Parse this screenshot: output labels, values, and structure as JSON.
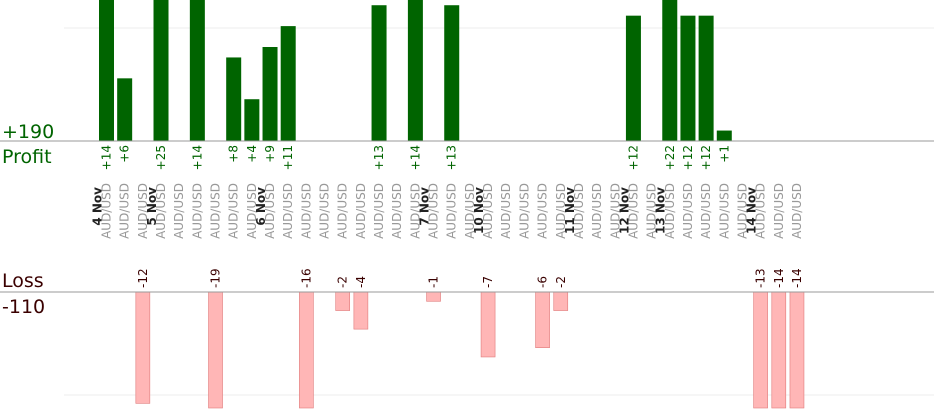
{
  "labels": {
    "profit_total": "+190",
    "profit": "Profit",
    "loss": "Loss",
    "loss_total": "-110"
  },
  "colors": {
    "profit_bar": "#006400",
    "profit_text": "#006400",
    "loss_bar": "#ffb6b6",
    "loss_bar_stroke": "#e07a7a",
    "loss_text": "#3a0000",
    "axis": "#999999",
    "category": "#999999",
    "date": "#222222",
    "grid": "#eeeeee"
  },
  "chart_data": {
    "type": "bar",
    "title": "",
    "dates": [
      {
        "label": "4 Nov",
        "after_index": -1
      },
      {
        "label": "5 Nov",
        "after_index": 2
      },
      {
        "label": "6 Nov",
        "after_index": 8
      },
      {
        "label": "7 Nov",
        "after_index": 17
      },
      {
        "label": "10 Nov",
        "after_index": 20
      },
      {
        "label": "11 Nov",
        "after_index": 25
      },
      {
        "label": "12 Nov",
        "after_index": 28
      },
      {
        "label": "13 Nov",
        "after_index": 30
      },
      {
        "label": "14 Nov",
        "after_index": 35
      }
    ],
    "trades": [
      {
        "symbol": "AUD/USD",
        "profit": 14
      },
      {
        "symbol": "AUD/USD",
        "profit": 6
      },
      {
        "symbol": "AUD/USD",
        "loss": -12
      },
      {
        "symbol": "AUD/USD",
        "profit": 25
      },
      {
        "symbol": "AUD/USD"
      },
      {
        "symbol": "AUD/USD",
        "profit": 14
      },
      {
        "symbol": "AUD/USD",
        "loss": -19
      },
      {
        "symbol": "AUD/USD",
        "profit": 8
      },
      {
        "symbol": "AUD/USD",
        "profit": 4
      },
      {
        "symbol": "AUD/USD",
        "profit": 9
      },
      {
        "symbol": "AUD/USD",
        "profit": 11
      },
      {
        "symbol": "AUD/USD",
        "loss": -16
      },
      {
        "symbol": "AUD/USD"
      },
      {
        "symbol": "AUD/USD",
        "loss": -2
      },
      {
        "symbol": "AUD/USD",
        "loss": -4
      },
      {
        "symbol": "AUD/USD",
        "profit": 13
      },
      {
        "symbol": "AUD/USD"
      },
      {
        "symbol": "AUD/USD",
        "profit": 14
      },
      {
        "symbol": "AUD/USD",
        "loss": -1
      },
      {
        "symbol": "AUD/USD",
        "profit": 13
      },
      {
        "symbol": "AUD/USD"
      },
      {
        "symbol": "AUD/USD",
        "loss": -7
      },
      {
        "symbol": "AUD/USD"
      },
      {
        "symbol": "AUD/USD"
      },
      {
        "symbol": "AUD/USD",
        "loss": -6
      },
      {
        "symbol": "AUD/USD",
        "loss": -2
      },
      {
        "symbol": "AUD/USD"
      },
      {
        "symbol": "AUD/USD"
      },
      {
        "symbol": "AUD/USD"
      },
      {
        "symbol": "AUD/USD",
        "profit": 12
      },
      {
        "symbol": "AUD/USD"
      },
      {
        "symbol": "AUD/USD",
        "profit": 22
      },
      {
        "symbol": "AUD/USD",
        "profit": 12
      },
      {
        "symbol": "AUD/USD",
        "profit": 12
      },
      {
        "symbol": "AUD/USD",
        "profit": 1
      },
      {
        "symbol": "AUD/USD"
      },
      {
        "symbol": "AUD/USD",
        "loss": -13
      },
      {
        "symbol": "AUD/USD",
        "loss": -14
      },
      {
        "symbol": "AUD/USD",
        "loss": -14
      }
    ],
    "profit_axis": {
      "max_visible": 13.5
    },
    "loss_axis": {
      "max_visible": 12.5
    }
  }
}
